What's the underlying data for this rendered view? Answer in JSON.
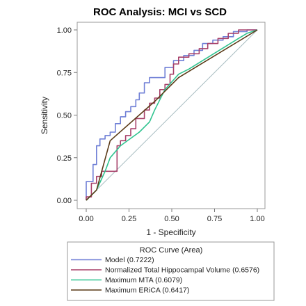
{
  "chart_data": {
    "type": "line",
    "title": "ROC Analysis: MCI vs SCD",
    "xlabel": "1 - Specificity",
    "ylabel": "Sensitivity",
    "xlim": [
      0,
      1
    ],
    "ylim": [
      0,
      1
    ],
    "xticks": [
      "0.00",
      "0.25",
      "0.50",
      "0.75",
      "1.00"
    ],
    "yticks": [
      "0.00",
      "0.25",
      "0.50",
      "0.75",
      "1.00"
    ],
    "legend_title": "ROC Curve (Area)",
    "legend_position": "bottom",
    "reference_line": true,
    "series": [
      {
        "name": "Model  (0.7222)",
        "color": "#6f7fd6",
        "points": [
          [
            0,
            0
          ],
          [
            0,
            0.11
          ],
          [
            0.04,
            0.11
          ],
          [
            0.04,
            0.21
          ],
          [
            0.06,
            0.21
          ],
          [
            0.06,
            0.32
          ],
          [
            0.08,
            0.32
          ],
          [
            0.08,
            0.36
          ],
          [
            0.11,
            0.36
          ],
          [
            0.11,
            0.38
          ],
          [
            0.14,
            0.38
          ],
          [
            0.14,
            0.4
          ],
          [
            0.17,
            0.4
          ],
          [
            0.17,
            0.45
          ],
          [
            0.2,
            0.45
          ],
          [
            0.2,
            0.49
          ],
          [
            0.23,
            0.49
          ],
          [
            0.23,
            0.52
          ],
          [
            0.26,
            0.52
          ],
          [
            0.26,
            0.55
          ],
          [
            0.29,
            0.55
          ],
          [
            0.29,
            0.59
          ],
          [
            0.31,
            0.59
          ],
          [
            0.31,
            0.63
          ],
          [
            0.34,
            0.63
          ],
          [
            0.34,
            0.69
          ],
          [
            0.37,
            0.69
          ],
          [
            0.37,
            0.72
          ],
          [
            0.43,
            0.72
          ],
          [
            0.43,
            0.72
          ],
          [
            0.46,
            0.72
          ],
          [
            0.46,
            0.78
          ],
          [
            0.51,
            0.78
          ],
          [
            0.51,
            0.82
          ],
          [
            0.57,
            0.82
          ],
          [
            0.57,
            0.85
          ],
          [
            0.63,
            0.85
          ],
          [
            0.63,
            0.88
          ],
          [
            0.68,
            0.88
          ],
          [
            0.68,
            0.92
          ],
          [
            0.74,
            0.92
          ],
          [
            0.74,
            0.94
          ],
          [
            0.8,
            0.94
          ],
          [
            0.8,
            0.96
          ],
          [
            0.86,
            0.96
          ],
          [
            0.86,
            0.99
          ],
          [
            0.94,
            0.99
          ],
          [
            0.94,
            1.0
          ],
          [
            1.0,
            1.0
          ]
        ]
      },
      {
        "name": "Normalized Total Hippocampal Volume  (0.6576)",
        "color": "#a8416a",
        "points": [
          [
            0,
            0
          ],
          [
            0,
            0.02
          ],
          [
            0.03,
            0.02
          ],
          [
            0.03,
            0.1
          ],
          [
            0.06,
            0.1
          ],
          [
            0.06,
            0.14
          ],
          [
            0.09,
            0.14
          ],
          [
            0.09,
            0.17
          ],
          [
            0.12,
            0.17
          ],
          [
            0.12,
            0.17
          ],
          [
            0.18,
            0.17
          ],
          [
            0.18,
            0.32
          ],
          [
            0.2,
            0.32
          ],
          [
            0.2,
            0.35
          ],
          [
            0.23,
            0.35
          ],
          [
            0.23,
            0.38
          ],
          [
            0.26,
            0.38
          ],
          [
            0.26,
            0.42
          ],
          [
            0.29,
            0.42
          ],
          [
            0.29,
            0.48
          ],
          [
            0.34,
            0.48
          ],
          [
            0.34,
            0.53
          ],
          [
            0.37,
            0.53
          ],
          [
            0.37,
            0.57
          ],
          [
            0.4,
            0.57
          ],
          [
            0.4,
            0.6
          ],
          [
            0.43,
            0.6
          ],
          [
            0.43,
            0.65
          ],
          [
            0.46,
            0.65
          ],
          [
            0.46,
            0.68
          ],
          [
            0.49,
            0.68
          ],
          [
            0.49,
            0.74
          ],
          [
            0.51,
            0.74
          ],
          [
            0.51,
            0.8
          ],
          [
            0.54,
            0.8
          ],
          [
            0.54,
            0.84
          ],
          [
            0.6,
            0.84
          ],
          [
            0.6,
            0.86
          ],
          [
            0.66,
            0.86
          ],
          [
            0.66,
            0.89
          ],
          [
            0.71,
            0.89
          ],
          [
            0.71,
            0.92
          ],
          [
            0.77,
            0.92
          ],
          [
            0.77,
            0.95
          ],
          [
            0.83,
            0.95
          ],
          [
            0.83,
            0.98
          ],
          [
            0.89,
            0.98
          ],
          [
            0.89,
            1.0
          ],
          [
            1.0,
            1.0
          ]
        ]
      },
      {
        "name": "Maximum MTA  (0.6079)",
        "color": "#2fc38f",
        "points": [
          [
            0,
            0
          ],
          [
            0.06,
            0.06
          ],
          [
            0.11,
            0.17
          ],
          [
            0.14,
            0.25
          ],
          [
            0.2,
            0.32
          ],
          [
            0.31,
            0.4
          ],
          [
            0.37,
            0.46
          ],
          [
            0.4,
            0.53
          ],
          [
            0.46,
            0.65
          ],
          [
            0.54,
            0.74
          ],
          [
            0.6,
            0.77
          ],
          [
            0.89,
            0.95
          ],
          [
            0.94,
            0.98
          ],
          [
            1.0,
            1.0
          ]
        ]
      },
      {
        "name": "Maximum ERiCA  (0.6417)",
        "color": "#5a3a17",
        "points": [
          [
            0,
            0
          ],
          [
            0.06,
            0.06
          ],
          [
            0.14,
            0.35
          ],
          [
            0.4,
            0.58
          ],
          [
            0.54,
            0.72
          ],
          [
            1.0,
            1.0
          ]
        ]
      }
    ]
  }
}
